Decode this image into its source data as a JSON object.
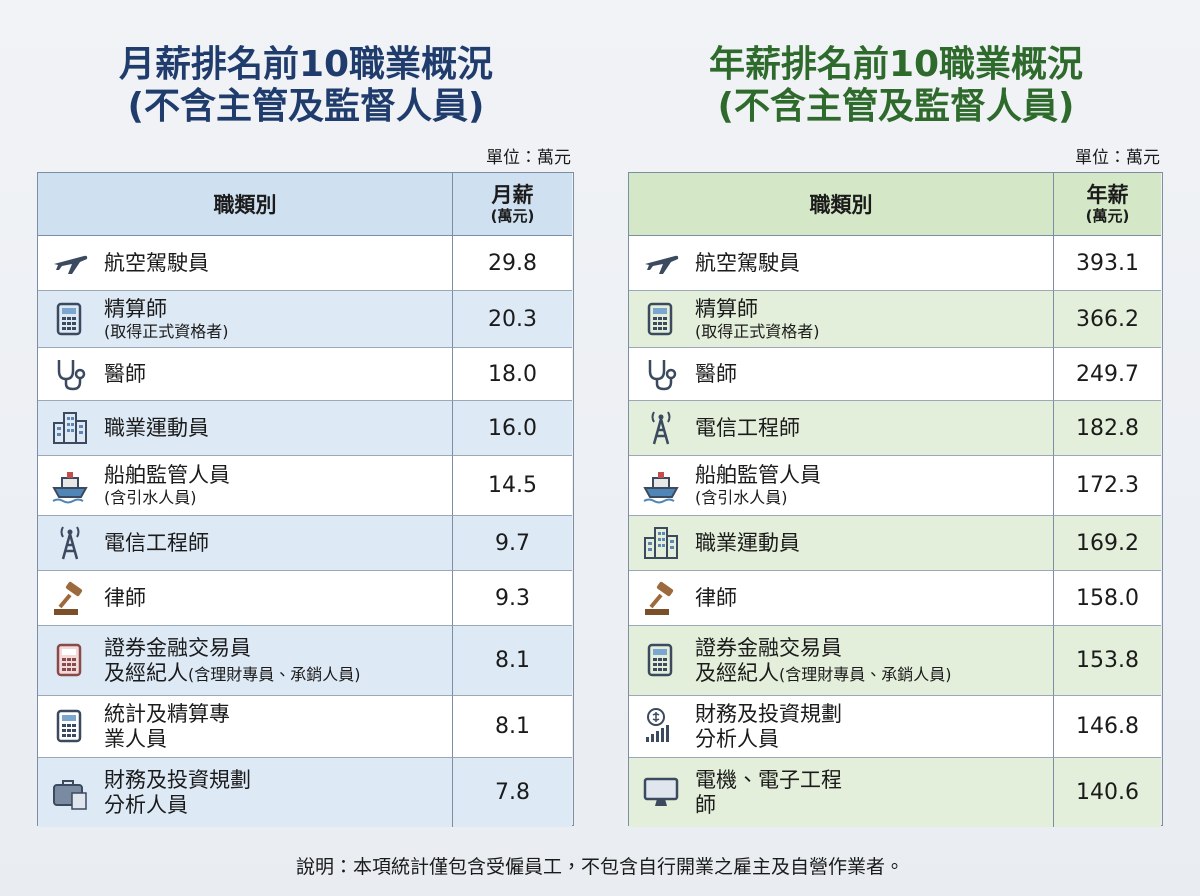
{
  "left": {
    "title": [
      "月薪排名前10職業概況",
      "(不含主管及監督人員)"
    ],
    "unit": "單位：萬元",
    "header": {
      "name": "職類別",
      "value": "月薪",
      "value_unit": "(萬元)"
    },
    "rows": [
      {
        "lines": [
          "航空駕駛員"
        ],
        "value": "29.8"
      },
      {
        "lines": [
          "精算師"
        ],
        "note": "(取得正式資格者)",
        "value": "20.3"
      },
      {
        "lines": [
          "醫師"
        ],
        "value": "18.0"
      },
      {
        "lines": [
          "職業運動員"
        ],
        "value": "16.0"
      },
      {
        "lines": [
          "船舶監管人員"
        ],
        "note": "(含引水人員)",
        "value": "14.5"
      },
      {
        "lines": [
          "電信工程師"
        ],
        "value": "9.7"
      },
      {
        "lines": [
          "律師"
        ],
        "value": "9.3"
      },
      {
        "lines": [
          "證券金融交易員",
          "及經紀人"
        ],
        "note": "(含理財專員、承銷人員)",
        "value": "8.1"
      },
      {
        "lines": [
          "統計及精算專",
          "業人員"
        ],
        "value": "8.1"
      },
      {
        "lines": [
          "財務及投資規劃",
          "分析人員"
        ],
        "value": "7.8"
      }
    ]
  },
  "right": {
    "title": [
      "年薪排名前10職業概況",
      "(不含主管及監督人員)"
    ],
    "unit": "單位：萬元",
    "header": {
      "name": "職類別",
      "value": "年薪",
      "value_unit": "(萬元)"
    },
    "rows": [
      {
        "lines": [
          "航空駕駛員"
        ],
        "value": "393.1"
      },
      {
        "lines": [
          "精算師"
        ],
        "note": "(取得正式資格者)",
        "value": "366.2"
      },
      {
        "lines": [
          "醫師"
        ],
        "value": "249.7"
      },
      {
        "lines": [
          "電信工程師"
        ],
        "value": "182.8"
      },
      {
        "lines": [
          "船舶監管人員"
        ],
        "note": "(含引水人員)",
        "value": "172.3"
      },
      {
        "lines": [
          "職業運動員"
        ],
        "value": "169.2"
      },
      {
        "lines": [
          "律師"
        ],
        "value": "158.0"
      },
      {
        "lines": [
          "證券金融交易員",
          "及經紀人"
        ],
        "note": "(含理財專員、承銷人員)",
        "value": "153.8"
      },
      {
        "lines": [
          "財務及投資規劃",
          "分析人員"
        ],
        "value": "146.8"
      },
      {
        "lines": [
          "電機、電子工程",
          "師"
        ],
        "value": "140.6"
      }
    ]
  },
  "footer": "說明：本項統計僅包含受僱員工，不包含自行開業之雇主及自營作業者。"
}
